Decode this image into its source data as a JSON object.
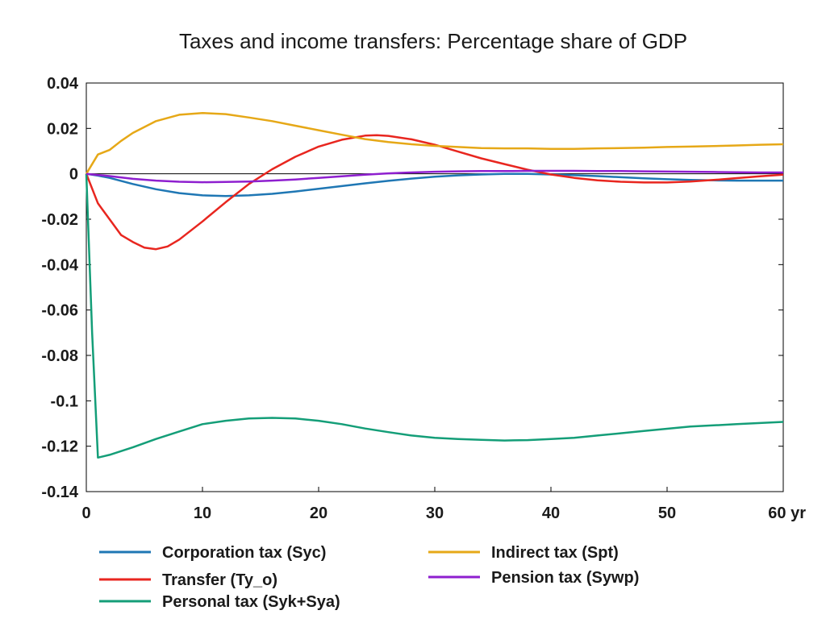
{
  "chart_data": {
    "type": "line",
    "title": "Taxes and income transfers: Percentage share of GDP",
    "xlabel": "",
    "ylabel": "",
    "xlim": [
      0,
      60
    ],
    "ylim": [
      -0.14,
      0.04
    ],
    "xticks": [
      0,
      10,
      20,
      30,
      40,
      50,
      60
    ],
    "xtick_labels": [
      "0",
      "10",
      "20",
      "30",
      "40",
      "50",
      "60 yr"
    ],
    "yticks": [
      0.04,
      0.02,
      0,
      -0.02,
      -0.04,
      -0.06,
      -0.08,
      -0.1,
      -0.12,
      -0.14
    ],
    "ytick_labels": [
      "0.04",
      "0.02",
      "0",
      "-0.02",
      "-0.04",
      "-0.06",
      "-0.08",
      "-0.1",
      "-0.12",
      "-0.14"
    ],
    "grid": false,
    "zero_line": true,
    "legend_position": "bottom",
    "series": [
      {
        "name": "Corporation tax (Syc)",
        "color": "#1f77b4",
        "points": [
          [
            0,
            0
          ],
          [
            1,
            -0.0008
          ],
          [
            2,
            -0.0018
          ],
          [
            4,
            -0.0045
          ],
          [
            6,
            -0.0068
          ],
          [
            8,
            -0.0085
          ],
          [
            10,
            -0.0095
          ],
          [
            12,
            -0.0098
          ],
          [
            14,
            -0.0095
          ],
          [
            16,
            -0.0088
          ],
          [
            18,
            -0.0078
          ],
          [
            20,
            -0.0066
          ],
          [
            22,
            -0.0054
          ],
          [
            24,
            -0.0042
          ],
          [
            26,
            -0.0031
          ],
          [
            28,
            -0.0021
          ],
          [
            30,
            -0.0013
          ],
          [
            32,
            -0.0007
          ],
          [
            34,
            -0.0003
          ],
          [
            36,
            0
          ],
          [
            38,
            0
          ],
          [
            40,
            -0.0003
          ],
          [
            42,
            -0.0006
          ],
          [
            44,
            -0.001
          ],
          [
            46,
            -0.0015
          ],
          [
            48,
            -0.002
          ],
          [
            50,
            -0.0024
          ],
          [
            52,
            -0.0027
          ],
          [
            54,
            -0.0029
          ],
          [
            56,
            -0.003
          ],
          [
            58,
            -0.003
          ],
          [
            60,
            -0.003
          ]
        ]
      },
      {
        "name": "Transfer (Ty_o)",
        "color": "#e8261f",
        "points": [
          [
            0,
            0
          ],
          [
            1,
            -0.013
          ],
          [
            2,
            -0.02
          ],
          [
            3,
            -0.027
          ],
          [
            4,
            -0.03
          ],
          [
            5,
            -0.0325
          ],
          [
            6,
            -0.0332
          ],
          [
            7,
            -0.032
          ],
          [
            8,
            -0.029
          ],
          [
            10,
            -0.021
          ],
          [
            12,
            -0.0125
          ],
          [
            14,
            -0.0045
          ],
          [
            16,
            0.002
          ],
          [
            18,
            0.0075
          ],
          [
            20,
            0.012
          ],
          [
            22,
            0.015
          ],
          [
            24,
            0.0168
          ],
          [
            25,
            0.017
          ],
          [
            26,
            0.0167
          ],
          [
            28,
            0.0152
          ],
          [
            30,
            0.0128
          ],
          [
            32,
            0.0098
          ],
          [
            34,
            0.0068
          ],
          [
            36,
            0.0043
          ],
          [
            38,
            0.0018
          ],
          [
            40,
            -0.0003
          ],
          [
            42,
            -0.0018
          ],
          [
            44,
            -0.0029
          ],
          [
            46,
            -0.0035
          ],
          [
            48,
            -0.0038
          ],
          [
            50,
            -0.0038
          ],
          [
            52,
            -0.0034
          ],
          [
            54,
            -0.0027
          ],
          [
            56,
            -0.0019
          ],
          [
            58,
            -0.0011
          ],
          [
            60,
            -0.0004
          ]
        ]
      },
      {
        "name": "Personal tax (Syk+Sya)",
        "color": "#149e78",
        "points": [
          [
            0,
            0
          ],
          [
            0.5,
            -0.07
          ],
          [
            1,
            -0.125
          ],
          [
            2,
            -0.1238
          ],
          [
            4,
            -0.1205
          ],
          [
            6,
            -0.1168
          ],
          [
            8,
            -0.1135
          ],
          [
            10,
            -0.1103
          ],
          [
            12,
            -0.1088
          ],
          [
            14,
            -0.1078
          ],
          [
            16,
            -0.1075
          ],
          [
            18,
            -0.1078
          ],
          [
            20,
            -0.1088
          ],
          [
            22,
            -0.1103
          ],
          [
            24,
            -0.1122
          ],
          [
            26,
            -0.1138
          ],
          [
            28,
            -0.1153
          ],
          [
            30,
            -0.1163
          ],
          [
            32,
            -0.1168
          ],
          [
            34,
            -0.1172
          ],
          [
            36,
            -0.1175
          ],
          [
            38,
            -0.1173
          ],
          [
            40,
            -0.1168
          ],
          [
            42,
            -0.1163
          ],
          [
            44,
            -0.1153
          ],
          [
            46,
            -0.1143
          ],
          [
            48,
            -0.1133
          ],
          [
            50,
            -0.1123
          ],
          [
            52,
            -0.1113
          ],
          [
            54,
            -0.1108
          ],
          [
            56,
            -0.1103
          ],
          [
            58,
            -0.1098
          ],
          [
            60,
            -0.1093
          ]
        ]
      },
      {
        "name": "Indirect tax (Spt)",
        "color": "#e6a817",
        "points": [
          [
            0,
            0
          ],
          [
            1,
            0.0085
          ],
          [
            2,
            0.0105
          ],
          [
            3,
            0.0145
          ],
          [
            4,
            0.018
          ],
          [
            6,
            0.0232
          ],
          [
            8,
            0.026
          ],
          [
            10,
            0.0268
          ],
          [
            12,
            0.0263
          ],
          [
            14,
            0.0248
          ],
          [
            16,
            0.0232
          ],
          [
            18,
            0.0212
          ],
          [
            20,
            0.0192
          ],
          [
            22,
            0.0172
          ],
          [
            24,
            0.0153
          ],
          [
            26,
            0.014
          ],
          [
            28,
            0.013
          ],
          [
            30,
            0.0123
          ],
          [
            32,
            0.0118
          ],
          [
            34,
            0.0113
          ],
          [
            36,
            0.0112
          ],
          [
            38,
            0.0112
          ],
          [
            40,
            0.011
          ],
          [
            42,
            0.011
          ],
          [
            44,
            0.0112
          ],
          [
            46,
            0.0113
          ],
          [
            48,
            0.0115
          ],
          [
            50,
            0.0118
          ],
          [
            52,
            0.012
          ],
          [
            54,
            0.0122
          ],
          [
            56,
            0.0125
          ],
          [
            58,
            0.0128
          ],
          [
            60,
            0.013
          ]
        ]
      },
      {
        "name": "Pension tax (Sywp)",
        "color": "#8e1fcf",
        "points": [
          [
            0,
            0
          ],
          [
            2,
            -0.001
          ],
          [
            4,
            -0.0022
          ],
          [
            6,
            -0.003
          ],
          [
            8,
            -0.0035
          ],
          [
            10,
            -0.0037
          ],
          [
            12,
            -0.0036
          ],
          [
            14,
            -0.0034
          ],
          [
            16,
            -0.003
          ],
          [
            18,
            -0.0025
          ],
          [
            20,
            -0.0018
          ],
          [
            22,
            -0.0011
          ],
          [
            24,
            -0.0004
          ],
          [
            26,
            0.0002
          ],
          [
            28,
            0.0006
          ],
          [
            30,
            0.0009
          ],
          [
            32,
            0.0011
          ],
          [
            34,
            0.0012
          ],
          [
            36,
            0.0012
          ],
          [
            38,
            0.0013
          ],
          [
            40,
            0.0013
          ],
          [
            42,
            0.0013
          ],
          [
            44,
            0.0012
          ],
          [
            46,
            0.0012
          ],
          [
            48,
            0.0011
          ],
          [
            50,
            0.001
          ],
          [
            52,
            0.0009
          ],
          [
            54,
            0.0008
          ],
          [
            56,
            0.0007
          ],
          [
            58,
            0.0006
          ],
          [
            60,
            0.0006
          ]
        ]
      }
    ]
  }
}
